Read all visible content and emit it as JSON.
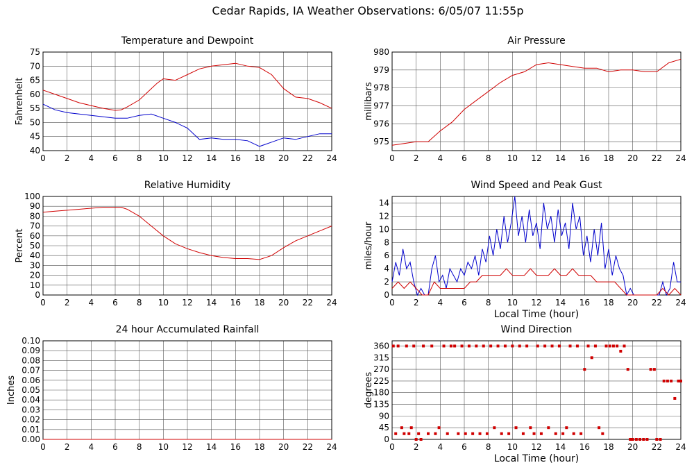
{
  "page": {
    "title": "Cedar Rapids, IA Weather Observations: 6/05/07 11:55p"
  },
  "colors": {
    "grid": "#555555",
    "axis": "#000000",
    "temperature": "#d00000",
    "dewpoint": "#0000cc",
    "pressure": "#d00000",
    "humidity": "#d00000",
    "wind_speed": "#0000cc",
    "peak_gust": "#d00000",
    "direction": "#d00000"
  },
  "chart_data": [
    {
      "id": "temp",
      "type": "line",
      "title": "Temperature and Dewpoint",
      "ylabel": "Fahrenheit",
      "xlabel": "",
      "xlim": [
        0,
        24
      ],
      "ylim": [
        40,
        75
      ],
      "xticks": [
        "0",
        "2",
        "4",
        "6",
        "8",
        "10",
        "12",
        "14",
        "16",
        "18",
        "20",
        "22",
        "24"
      ],
      "yticks": [
        "40",
        "45",
        "50",
        "55",
        "60",
        "65",
        "70",
        "75"
      ],
      "grid": true,
      "series": [
        {
          "color": "#d00000",
          "x": [
            0,
            1,
            2,
            3,
            4,
            5,
            6,
            6.5,
            7,
            8,
            9,
            9.5,
            10,
            11,
            12,
            13,
            14,
            15,
            16,
            17,
            18,
            19,
            20,
            21,
            22,
            23,
            24
          ],
          "values": [
            61.5,
            60,
            58.5,
            57,
            56,
            55,
            54.3,
            54.5,
            55.5,
            58,
            62,
            64,
            65.5,
            65,
            67,
            69,
            70,
            70.5,
            71,
            70,
            69.5,
            67,
            62,
            59,
            58.5,
            57,
            55
          ]
        },
        {
          "color": "#0000cc",
          "x": [
            0,
            1,
            2,
            3,
            4,
            5,
            6,
            7,
            8,
            9,
            10,
            11,
            12,
            12.5,
            13,
            14,
            15,
            16,
            17,
            18,
            19,
            20,
            21,
            22,
            23,
            24
          ],
          "values": [
            56.5,
            54.5,
            53.5,
            53,
            52.5,
            52,
            51.5,
            51.5,
            52.5,
            53,
            51.5,
            50,
            48,
            46,
            44,
            44.5,
            44,
            44,
            43.5,
            41.5,
            43,
            44.5,
            44,
            45,
            46,
            46
          ]
        }
      ]
    },
    {
      "id": "pressure",
      "type": "line",
      "title": "Air Pressure",
      "ylabel": "millibars",
      "xlabel": "",
      "xlim": [
        0,
        24
      ],
      "ylim": [
        974.5,
        980
      ],
      "xticks": [
        "0",
        "2",
        "4",
        "6",
        "8",
        "10",
        "12",
        "14",
        "16",
        "18",
        "20",
        "22",
        "24"
      ],
      "yticks": [
        "975",
        "976",
        "977",
        "978",
        "979",
        "980"
      ],
      "grid": true,
      "series": [
        {
          "color": "#d00000",
          "x": [
            0,
            1,
            2,
            3,
            4,
            5,
            6,
            7,
            8,
            9,
            10,
            11,
            12,
            13,
            14,
            15,
            16,
            17,
            18,
            19,
            20,
            21,
            22,
            23,
            24
          ],
          "values": [
            974.8,
            974.9,
            975,
            975,
            975.6,
            976.1,
            976.8,
            977.3,
            977.8,
            978.3,
            978.7,
            978.9,
            979.3,
            979.4,
            979.3,
            979.2,
            979.1,
            979.1,
            978.9,
            979,
            979,
            978.9,
            978.9,
            979.4,
            979.6
          ]
        }
      ]
    },
    {
      "id": "humidity",
      "type": "line",
      "title": "Relative Humidity",
      "ylabel": "Percent",
      "xlabel": "",
      "xlim": [
        0,
        24
      ],
      "ylim": [
        0,
        100
      ],
      "xticks": [
        "0",
        "2",
        "4",
        "6",
        "8",
        "10",
        "12",
        "14",
        "16",
        "18",
        "20",
        "22",
        "24"
      ],
      "yticks": [
        "0",
        "10",
        "20",
        "30",
        "40",
        "50",
        "60",
        "70",
        "80",
        "90",
        "100"
      ],
      "grid": true,
      "series": [
        {
          "color": "#d00000",
          "x": [
            0,
            1,
            2,
            3,
            4,
            5,
            6,
            6.5,
            7,
            8,
            9,
            10,
            11,
            12,
            13,
            14,
            15,
            16,
            17,
            18,
            19,
            20,
            21,
            22,
            23,
            24
          ],
          "values": [
            84,
            85,
            86,
            87,
            88,
            89,
            89,
            89,
            87,
            80,
            70,
            60,
            52,
            47,
            43,
            40,
            38,
            37,
            37,
            36,
            40,
            48,
            55,
            60,
            65,
            70
          ]
        }
      ]
    },
    {
      "id": "wind",
      "type": "line",
      "title": "Wind Speed and Peak Gust",
      "ylabel": "miles/hour",
      "xlabel": "Local Time (hour)",
      "xlim": [
        0,
        24
      ],
      "ylim": [
        0,
        15
      ],
      "xticks": [
        "0",
        "2",
        "4",
        "6",
        "8",
        "10",
        "12",
        "14",
        "16",
        "18",
        "20",
        "22",
        "24"
      ],
      "yticks": [
        "0",
        "2",
        "4",
        "6",
        "8",
        "10",
        "12",
        "14"
      ],
      "grid": true,
      "series": [
        {
          "color": "#0000cc",
          "x": [
            0,
            0.3,
            0.6,
            0.9,
            1.2,
            1.5,
            1.8,
            2.1,
            2.4,
            2.7,
            3,
            3.3,
            3.6,
            3.9,
            4.2,
            4.5,
            4.8,
            5.1,
            5.4,
            5.7,
            6,
            6.3,
            6.6,
            6.9,
            7.2,
            7.5,
            7.8,
            8.1,
            8.4,
            8.7,
            9,
            9.3,
            9.6,
            9.9,
            10.2,
            10.5,
            10.8,
            11.1,
            11.4,
            11.7,
            12,
            12.3,
            12.6,
            12.9,
            13.2,
            13.5,
            13.8,
            14.1,
            14.4,
            14.7,
            15,
            15.3,
            15.6,
            15.9,
            16.2,
            16.5,
            16.8,
            17.1,
            17.4,
            17.7,
            18,
            18.3,
            18.6,
            18.9,
            19.2,
            19.5,
            19.8,
            20.1,
            20.4,
            20.7,
            21,
            21.3,
            21.6,
            21.9,
            22.2,
            22.5,
            22.8,
            23.1,
            23.4,
            23.7,
            24
          ],
          "values": [
            2,
            5,
            3,
            7,
            4,
            5,
            2,
            0,
            1,
            0,
            0,
            4,
            6,
            2,
            3,
            1,
            4,
            3,
            2,
            4,
            3,
            5,
            4,
            6,
            3,
            7,
            5,
            9,
            6,
            10,
            7,
            12,
            8,
            11,
            15,
            9,
            12,
            8,
            13,
            9,
            11,
            7,
            14,
            10,
            12,
            8,
            13,
            9,
            11,
            7,
            14,
            10,
            12,
            6,
            9,
            5,
            10,
            6,
            11,
            4,
            7,
            3,
            6,
            4,
            3,
            0,
            1,
            0,
            0,
            0,
            0,
            0,
            0,
            0,
            0,
            2,
            0,
            1,
            5,
            2,
            2
          ]
        },
        {
          "color": "#d00000",
          "x": [
            0,
            0.5,
            1,
            1.5,
            2,
            2.5,
            3,
            3.5,
            4,
            4.5,
            5,
            5.5,
            6,
            6.5,
            7,
            7.5,
            8,
            8.5,
            9,
            9.5,
            10,
            10.5,
            11,
            11.5,
            12,
            12.5,
            13,
            13.5,
            14,
            14.5,
            15,
            15.5,
            16,
            16.5,
            17,
            17.5,
            18,
            18.5,
            19,
            19.5,
            20,
            20.5,
            21,
            21.5,
            22,
            22.5,
            23,
            23.5,
            24
          ],
          "values": [
            1,
            2,
            1,
            2,
            1,
            0,
            0,
            2,
            1,
            1,
            1,
            1,
            1,
            2,
            2,
            3,
            3,
            3,
            3,
            4,
            3,
            3,
            3,
            4,
            3,
            3,
            3,
            4,
            3,
            3,
            4,
            3,
            3,
            3,
            2,
            2,
            2,
            2,
            1,
            0,
            0,
            0,
            0,
            0,
            0,
            1,
            0,
            1,
            0
          ]
        }
      ]
    },
    {
      "id": "rain",
      "type": "line",
      "title": "24 hour Accumulated Rainfall",
      "ylabel": "Inches",
      "xlabel": "",
      "xlim": [
        0,
        24
      ],
      "ylim": [
        0,
        0.1
      ],
      "xticks": [
        "0",
        "2",
        "4",
        "6",
        "8",
        "10",
        "12",
        "14",
        "16",
        "18",
        "20",
        "22",
        "24"
      ],
      "yticks": [
        "0.00",
        "0.01",
        "0.02",
        "0.03",
        "0.04",
        "0.05",
        "0.06",
        "0.07",
        "0.08",
        "0.09",
        "0.10"
      ],
      "grid": true,
      "series": [
        {
          "color": "#d00000",
          "x": [
            0,
            24
          ],
          "values": [
            0,
            0
          ]
        }
      ]
    },
    {
      "id": "direction",
      "type": "scatter",
      "title": "Wind Direction",
      "ylabel": "degrees",
      "xlabel": "Local Time (hour)",
      "xlim": [
        0,
        24
      ],
      "ylim": [
        0,
        380
      ],
      "xticks": [
        "0",
        "2",
        "4",
        "6",
        "8",
        "10",
        "12",
        "14",
        "16",
        "18",
        "20",
        "22",
        "24"
      ],
      "yticks": [
        "0",
        "45",
        "90",
        "135",
        "180",
        "225",
        "270",
        "315",
        "360"
      ],
      "grid": true,
      "series": [
        {
          "color": "#d00000",
          "x": [
            0.1,
            0.3,
            0.5,
            0.8,
            1.0,
            1.2,
            1.4,
            1.6,
            1.8,
            2.0,
            2.2,
            2.4,
            2.6,
            3.0,
            3.3,
            3.6,
            3.9,
            4.3,
            4.6,
            4.9,
            5.2,
            5.5,
            5.8,
            6.1,
            6.4,
            6.7,
            7.0,
            7.3,
            7.6,
            7.9,
            8.2,
            8.5,
            8.8,
            9.1,
            9.4,
            9.7,
            10.0,
            10.3,
            10.6,
            10.9,
            11.2,
            11.5,
            11.8,
            12.1,
            12.4,
            12.7,
            13.0,
            13.3,
            13.6,
            13.9,
            14.2,
            14.5,
            14.8,
            15.1,
            15.4,
            15.7,
            16.0,
            16.3,
            16.6,
            16.9,
            17.2,
            17.5,
            17.8,
            18.1,
            18.4,
            18.7,
            19.0,
            19.3,
            19.6,
            19.8,
            20.0,
            20.3,
            20.6,
            20.9,
            21.2,
            21.5,
            21.8,
            22.0,
            22.3,
            22.6,
            22.9,
            23.2,
            23.5,
            23.8,
            24.0
          ],
          "values": [
            360,
            22,
            360,
            45,
            22,
            360,
            22,
            45,
            360,
            0,
            22,
            0,
            360,
            22,
            360,
            22,
            45,
            360,
            22,
            360,
            360,
            22,
            360,
            22,
            360,
            22,
            360,
            22,
            360,
            22,
            360,
            45,
            360,
            22,
            360,
            22,
            360,
            45,
            360,
            22,
            360,
            45,
            22,
            360,
            22,
            360,
            45,
            360,
            22,
            360,
            22,
            45,
            360,
            22,
            360,
            22,
            270,
            360,
            315,
            360,
            45,
            22,
            360,
            360,
            360,
            360,
            340,
            360,
            270,
            0,
            0,
            0,
            0,
            0,
            0,
            270,
            270,
            0,
            0,
            225,
            225,
            225,
            158,
            225,
            225
          ]
        }
      ]
    }
  ]
}
